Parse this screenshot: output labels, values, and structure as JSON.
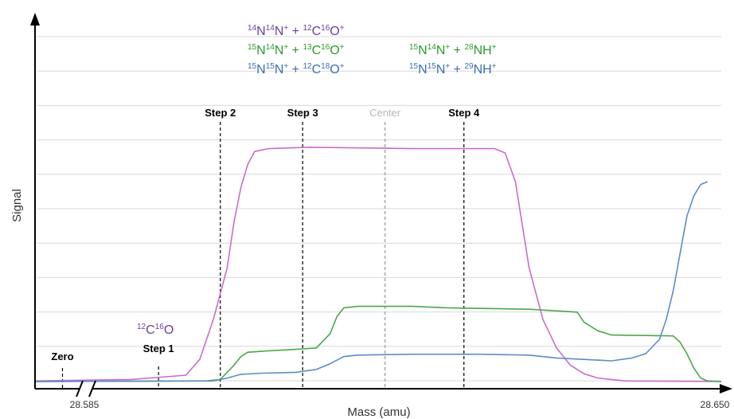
{
  "chart_data": {
    "type": "line",
    "xlabel": "Mass (amu)",
    "ylabel": "Signal",
    "x_tick_labels": [
      "28.585",
      "28.650"
    ],
    "xlim": [
      0,
      100
    ],
    "ylim": [
      0,
      100
    ],
    "grid": true,
    "markers": [
      {
        "label": "Zero",
        "x": 4.0,
        "style": "bold",
        "color": "#000000"
      },
      {
        "label": "Step 1",
        "x": 18.0,
        "style": "bold",
        "color": "#000000"
      },
      {
        "label": "Step 2",
        "x": 27.0,
        "style": "bold",
        "color": "#000000"
      },
      {
        "label": "Step 3",
        "x": 39.0,
        "style": "bold",
        "color": "#000000"
      },
      {
        "label": "Center",
        "x": 51.0,
        "style": "light",
        "color": "#b8b8b8"
      },
      {
        "label": "Step 4",
        "x": 62.5,
        "style": "bold",
        "color": "#000000"
      }
    ],
    "series": [
      {
        "color": "#cc6bcc",
        "values": [
          [
            0,
            0.5
          ],
          [
            14,
            1
          ],
          [
            22,
            2.5
          ],
          [
            24,
            8
          ],
          [
            26,
            22
          ],
          [
            28,
            40
          ],
          [
            29,
            56
          ],
          [
            30,
            68
          ],
          [
            31,
            76
          ],
          [
            32,
            80.5
          ],
          [
            34,
            81.5
          ],
          [
            40,
            82
          ],
          [
            55,
            81.5
          ],
          [
            67,
            81.5
          ],
          [
            68.5,
            80
          ],
          [
            70,
            70
          ],
          [
            71,
            55
          ],
          [
            72,
            40
          ],
          [
            74,
            22
          ],
          [
            76,
            12
          ],
          [
            78,
            6
          ],
          [
            80,
            3
          ],
          [
            82,
            1.5
          ],
          [
            86,
            0.5
          ],
          [
            100,
            0.3
          ]
        ]
      },
      {
        "color": "#4ba84b",
        "values": [
          [
            0,
            0.3
          ],
          [
            25,
            0.5
          ],
          [
            27,
            1
          ],
          [
            29,
            6
          ],
          [
            30,
            9
          ],
          [
            31,
            10.5
          ],
          [
            34,
            11
          ],
          [
            38,
            11.5
          ],
          [
            41,
            12
          ],
          [
            43,
            17
          ],
          [
            44,
            23
          ],
          [
            45,
            26
          ],
          [
            47,
            26.5
          ],
          [
            55,
            26.5
          ],
          [
            60,
            26
          ],
          [
            72,
            25.5
          ],
          [
            79,
            24.5
          ],
          [
            80,
            21
          ],
          [
            82,
            18
          ],
          [
            84,
            16.5
          ],
          [
            93,
            16.2
          ],
          [
            94,
            14
          ],
          [
            95,
            10
          ],
          [
            96,
            5
          ],
          [
            97,
            1.5
          ],
          [
            98,
            0.5
          ],
          [
            100,
            0.3
          ]
        ]
      },
      {
        "color": "#5b8cc6",
        "values": [
          [
            0,
            0.3
          ],
          [
            26,
            0.5
          ],
          [
            28,
            1.5
          ],
          [
            30,
            2.8
          ],
          [
            33,
            3.2
          ],
          [
            38,
            3.5
          ],
          [
            41,
            4.5
          ],
          [
            43,
            6.5
          ],
          [
            45,
            9
          ],
          [
            47,
            9.5
          ],
          [
            55,
            9.8
          ],
          [
            65,
            9.8
          ],
          [
            72,
            9.5
          ],
          [
            76,
            8.5
          ],
          [
            84,
            7.5
          ],
          [
            87,
            8.5
          ],
          [
            89,
            10
          ],
          [
            91,
            15
          ],
          [
            92,
            22
          ],
          [
            93,
            32
          ],
          [
            94,
            45
          ],
          [
            95,
            58
          ],
          [
            96,
            65
          ],
          [
            97,
            69
          ],
          [
            98,
            70
          ]
        ]
      }
    ]
  },
  "isotope_labels": {
    "group_a": [
      [
        {
          "sup": "14",
          "text": "N"
        },
        {
          "sup": "14",
          "text": "N"
        },
        {
          "sup": "+",
          "text": " + "
        },
        {
          "sup": "12",
          "text": "C"
        },
        {
          "sup": "16",
          "text": "O"
        },
        {
          "sup": "+",
          "text": ""
        }
      ],
      [
        {
          "sup": "15",
          "text": "N"
        },
        {
          "sup": "14",
          "text": "N"
        },
        {
          "sup": "+",
          "text": " + "
        },
        {
          "sup": "13",
          "text": "C"
        },
        {
          "sup": "16",
          "text": "O"
        },
        {
          "sup": "+",
          "text": ""
        }
      ],
      [
        {
          "sup": "15",
          "text": "N"
        },
        {
          "sup": "15",
          "text": "N"
        },
        {
          "sup": "+",
          "text": " + "
        },
        {
          "sup": "12",
          "text": "C"
        },
        {
          "sup": "18",
          "text": "O"
        },
        {
          "sup": "+",
          "text": ""
        }
      ]
    ],
    "group_b": [
      [
        {
          "sup": "15",
          "text": "N"
        },
        {
          "sup": "14",
          "text": "N"
        },
        {
          "sup": "+",
          "text": " + "
        },
        {
          "sup": "28",
          "text": "NH"
        },
        {
          "sup": "+",
          "text": ""
        }
      ],
      [
        {
          "sup": "15",
          "text": "N"
        },
        {
          "sup": "15",
          "text": "N"
        },
        {
          "sup": "+",
          "text": " + "
        },
        {
          "sup": "29",
          "text": "NH"
        },
        {
          "sup": "+",
          "text": ""
        }
      ]
    ],
    "step1_species": [
      {
        "sup": "12",
        "text": "C"
      },
      {
        "sup": "16",
        "text": "O"
      }
    ],
    "colors": {
      "purple": "#6b3fa0",
      "green": "#2e9a2e",
      "blue": "#3a6fb0"
    }
  }
}
